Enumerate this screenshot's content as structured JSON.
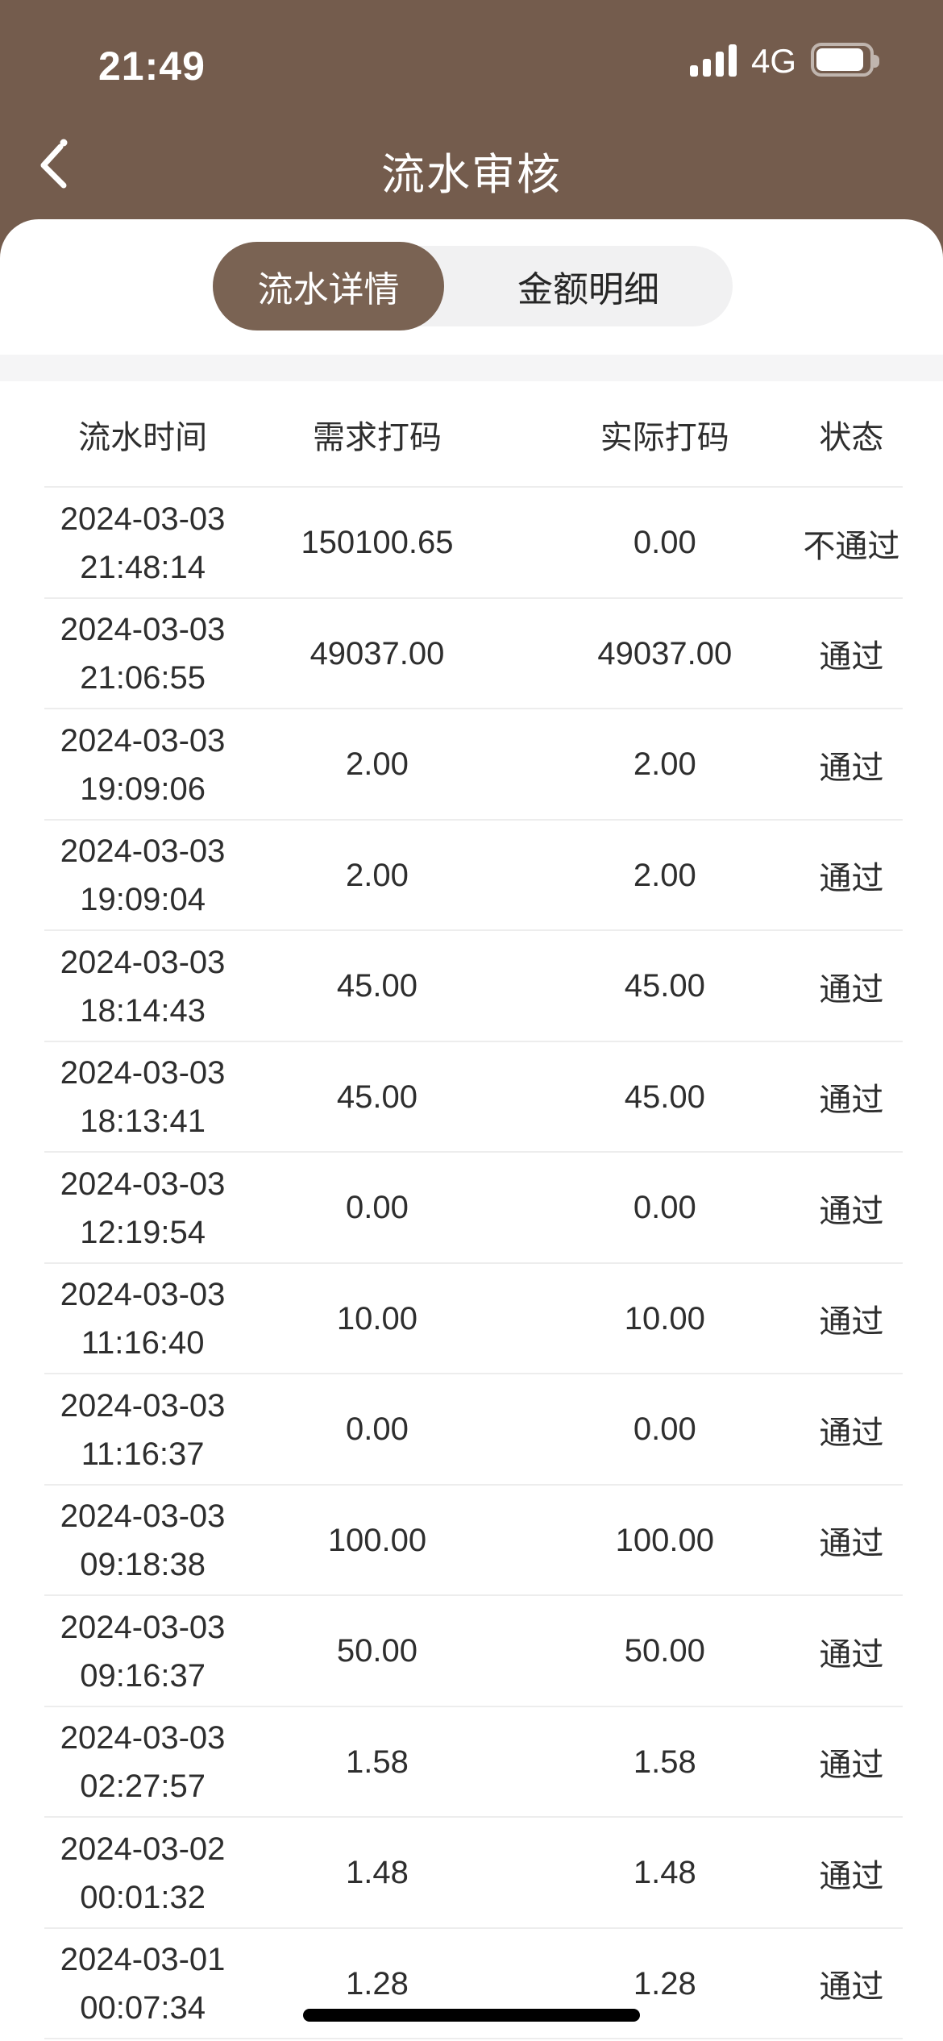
{
  "status_bar": {
    "time": "21:49",
    "network_label": "4G",
    "signal_bars": 4,
    "battery_level_percent": 95
  },
  "nav": {
    "title": "流水审核"
  },
  "tabs": [
    {
      "label": "流水详情",
      "selected": true
    },
    {
      "label": "金额明细",
      "selected": false
    }
  ],
  "table": {
    "headers": [
      "流水时间",
      "需求打码",
      "实际打码",
      "状态"
    ],
    "rows": [
      {
        "date": "2024-03-03",
        "time": "21:48:14",
        "required": "150100.65",
        "actual": "0.00",
        "status": "不通过"
      },
      {
        "date": "2024-03-03",
        "time": "21:06:55",
        "required": "49037.00",
        "actual": "49037.00",
        "status": "通过"
      },
      {
        "date": "2024-03-03",
        "time": "19:09:06",
        "required": "2.00",
        "actual": "2.00",
        "status": "通过"
      },
      {
        "date": "2024-03-03",
        "time": "19:09:04",
        "required": "2.00",
        "actual": "2.00",
        "status": "通过"
      },
      {
        "date": "2024-03-03",
        "time": "18:14:43",
        "required": "45.00",
        "actual": "45.00",
        "status": "通过"
      },
      {
        "date": "2024-03-03",
        "time": "18:13:41",
        "required": "45.00",
        "actual": "45.00",
        "status": "通过"
      },
      {
        "date": "2024-03-03",
        "time": "12:19:54",
        "required": "0.00",
        "actual": "0.00",
        "status": "通过"
      },
      {
        "date": "2024-03-03",
        "time": "11:16:40",
        "required": "10.00",
        "actual": "10.00",
        "status": "通过"
      },
      {
        "date": "2024-03-03",
        "time": "11:16:37",
        "required": "0.00",
        "actual": "0.00",
        "status": "通过"
      },
      {
        "date": "2024-03-03",
        "time": "09:18:38",
        "required": "100.00",
        "actual": "100.00",
        "status": "通过"
      },
      {
        "date": "2024-03-03",
        "time": "09:16:37",
        "required": "50.00",
        "actual": "50.00",
        "status": "通过"
      },
      {
        "date": "2024-03-03",
        "time": "02:27:57",
        "required": "1.58",
        "actual": "1.58",
        "status": "通过"
      },
      {
        "date": "2024-03-02",
        "time": "00:01:32",
        "required": "1.48",
        "actual": "1.48",
        "status": "通过"
      },
      {
        "date": "2024-03-01",
        "time": "00:07:34",
        "required": "1.28",
        "actual": "1.28",
        "status": "通过"
      }
    ]
  },
  "colors": {
    "header_brown": "#745C4D",
    "selected_tab_brown": "#7A6353",
    "tab_track_gray": "#F1F1F2",
    "band_gray": "#F5F5F6",
    "divider_gray": "#EDEDED",
    "text_dark": "#2E2E2E"
  }
}
